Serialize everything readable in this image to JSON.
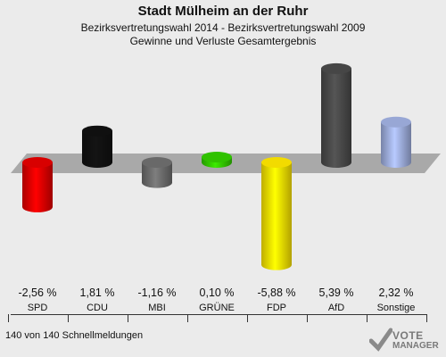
{
  "header": {
    "title": "Stadt Mülheim an der Ruhr",
    "subtitle1": "Bezirksvertretungswahl 2014 - Bezirksvertretungswahl 2009",
    "subtitle2": "Gewinne und Verluste Gesamtergebnis"
  },
  "chart_data": {
    "type": "bar",
    "categories": [
      "SPD",
      "CDU",
      "MBI",
      "GRÜNE",
      "FDP",
      "AfD",
      "Sonstige"
    ],
    "values": [
      -2.56,
      1.81,
      -1.16,
      0.1,
      -5.88,
      5.39,
      2.32
    ],
    "value_labels": [
      "-2,56 %",
      "1,81 %",
      "-1,16 %",
      "0,10 %",
      "-5,88 %",
      "5,39 %",
      "2,32 %"
    ],
    "colors": [
      "#e30000",
      "#111111",
      "#6e6e6e",
      "#33cc00",
      "#ffe600",
      "#4a4a4a",
      "#a0b0e0"
    ],
    "title": "Stadt Mülheim an der Ruhr"
  },
  "footer": {
    "reports": "140 von 140 Schnellmeldungen"
  },
  "logo": {
    "line1": "VOTE",
    "line2": "MANAGER"
  }
}
